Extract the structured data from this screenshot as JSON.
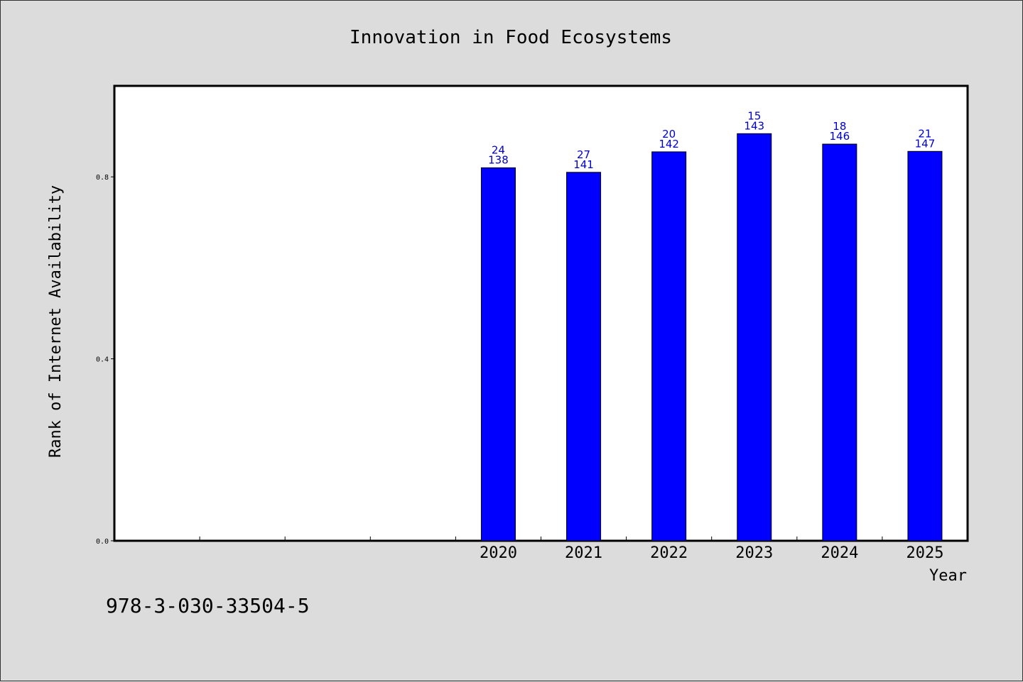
{
  "chart_data": {
    "type": "bar",
    "title": "Innovation in Food Ecosystems",
    "xlabel": "Year",
    "ylabel": "Rank of Internet Availability",
    "categories": [
      "",
      "",
      "",
      "",
      "2020",
      "2021",
      "2022",
      "2023",
      "2024",
      "2025"
    ],
    "values": [
      null,
      null,
      null,
      null,
      0.82,
      0.81,
      0.855,
      0.895,
      0.872,
      0.856
    ],
    "label_top": [
      "",
      "",
      "",
      "",
      "24",
      "27",
      "20",
      "15",
      "18",
      "21"
    ],
    "label_bottom": [
      "",
      "",
      "",
      "",
      "138",
      "141",
      "142",
      "143",
      "146",
      "147"
    ],
    "ylim": [
      0,
      1.0
    ],
    "yticks": [
      "0.0",
      "0.4",
      "0.8"
    ],
    "ytick_values": [
      0.0,
      0.4,
      0.8
    ],
    "grid": false,
    "legend": "none",
    "bar_color": "#0000ff",
    "label_color": "#0000cc"
  },
  "footer": {
    "code": "978-3-030-33504-5"
  }
}
